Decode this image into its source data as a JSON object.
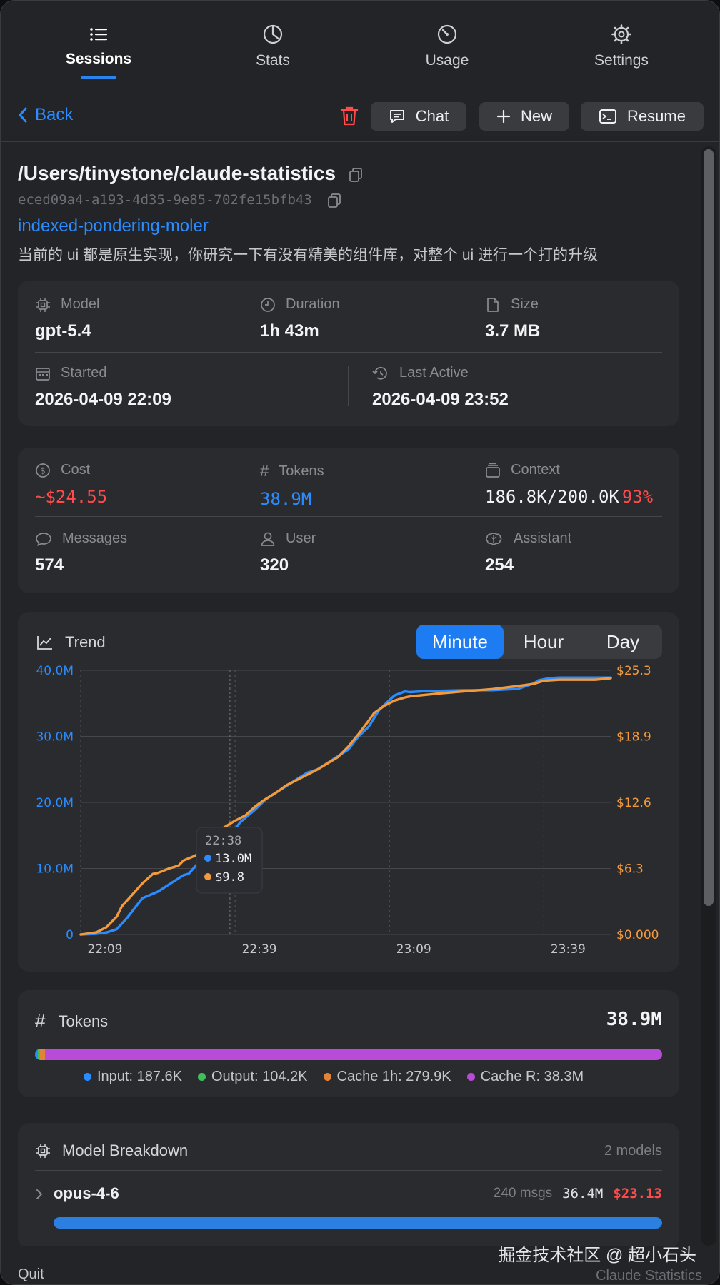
{
  "tabs": [
    {
      "label": "Sessions",
      "icon": "list-icon",
      "active": true
    },
    {
      "label": "Stats",
      "icon": "pie-chart-icon",
      "active": false
    },
    {
      "label": "Usage",
      "icon": "gauge-icon",
      "active": false
    },
    {
      "label": "Settings",
      "icon": "gear-icon",
      "active": false
    }
  ],
  "toolbar": {
    "back_label": "Back",
    "chat_label": "Chat",
    "new_label": "New",
    "resume_label": "Resume"
  },
  "session": {
    "path": "/Users/tinystone/claude-statistics",
    "uuid": "eced09a4-a193-4d35-9e85-702fe15bfb43",
    "slug": "indexed-pondering-moler",
    "description": "当前的 ui 都是原生实现，你研究一下有没有精美的组件库，对整个 ui 进行一个打的升级"
  },
  "info": {
    "model_label": "Model",
    "model_value": "gpt-5.4",
    "duration_label": "Duration",
    "duration_value": "1h 43m",
    "size_label": "Size",
    "size_value": "3.7 MB",
    "started_label": "Started",
    "started_value": "2026-04-09 22:09",
    "last_active_label": "Last Active",
    "last_active_value": "2026-04-09 23:52"
  },
  "metrics": {
    "cost_label": "Cost",
    "cost_value": "~$24.55",
    "tokens_label": "Tokens",
    "tokens_value": "38.9M",
    "context_label": "Context",
    "context_value": "186.8K/200.0K",
    "context_pct": "93%",
    "messages_label": "Messages",
    "messages_value": "574",
    "user_label": "User",
    "user_value": "320",
    "assistant_label": "Assistant",
    "assistant_value": "254"
  },
  "trend": {
    "title": "Trend",
    "segments": [
      "Minute",
      "Hour",
      "Day"
    ],
    "active_segment": "Minute",
    "tooltip": {
      "time": "22:38",
      "tokens": "13.0M",
      "cost": "$9.8"
    }
  },
  "chart_data": {
    "type": "line",
    "title": "Trend",
    "x_ticks": [
      "22:09",
      "22:39",
      "23:09",
      "23:39"
    ],
    "y_left_ticks": [
      "0",
      "10.0M",
      "20.0M",
      "30.0M",
      "40.0M"
    ],
    "y_right_ticks": [
      "$0.000",
      "$6.3",
      "$12.6",
      "$18.9",
      "$25.3"
    ],
    "y_left_range": [
      0,
      40
    ],
    "y_right_range": [
      0,
      25.3
    ],
    "x_range_minutes": [
      0,
      103
    ],
    "series": [
      {
        "axis": "left",
        "color": "#2a8cff",
        "x": [
          0,
          3,
          5,
          7,
          9,
          12,
          15,
          16,
          18,
          20,
          21,
          23,
          24,
          26,
          28,
          30,
          31,
          34,
          36,
          38,
          40,
          42,
          44,
          46,
          48,
          50,
          52,
          54,
          56,
          58,
          60,
          61,
          63,
          64,
          66,
          68,
          70,
          75,
          80,
          85,
          88,
          89,
          91,
          93,
          95,
          100,
          103
        ],
        "values": [
          0,
          0.1,
          0.3,
          0.8,
          2.5,
          5.5,
          6.5,
          7.0,
          8.0,
          9.0,
          9.2,
          11.0,
          12.0,
          13.0,
          14.5,
          16.0,
          17.0,
          19.0,
          20.5,
          21.5,
          22.5,
          23.5,
          24.5,
          25.0,
          26.0,
          27.0,
          28.0,
          30.0,
          31.5,
          34.0,
          35.5,
          36.2,
          36.8,
          36.7,
          36.8,
          36.9,
          36.9,
          37.0,
          37.0,
          37.2,
          38.0,
          38.5,
          38.8,
          38.9,
          38.9,
          38.9,
          38.9
        ]
      },
      {
        "axis": "right",
        "color": "#f39a3c",
        "x": [
          0,
          3,
          5,
          7,
          8,
          10,
          12,
          14,
          15,
          17,
          19,
          20,
          22,
          24,
          25,
          26,
          28,
          30,
          32,
          34,
          36,
          38,
          40,
          42,
          44,
          46,
          48,
          50,
          52,
          54,
          56,
          57,
          59,
          61,
          63,
          64,
          66,
          70,
          75,
          80,
          85,
          88,
          90,
          93,
          96,
          100,
          103
        ],
        "values": [
          0,
          0.2,
          0.7,
          1.7,
          2.7,
          3.8,
          4.9,
          5.8,
          5.9,
          6.3,
          6.6,
          7.1,
          7.5,
          8.0,
          8.7,
          9.6,
          10.3,
          10.9,
          11.4,
          12.3,
          13.0,
          13.6,
          14.3,
          14.8,
          15.3,
          15.8,
          16.4,
          17.0,
          18.0,
          19.2,
          20.5,
          21.2,
          21.9,
          22.4,
          22.7,
          22.8,
          22.9,
          23.1,
          23.3,
          23.5,
          23.8,
          24.0,
          24.3,
          24.4,
          24.4,
          24.4,
          24.55
        ]
      }
    ]
  },
  "token_breakdown": {
    "title": "Tokens",
    "total": "38.9M",
    "legend": [
      {
        "label": "Input: 187.6K",
        "color": "#2a8cff"
      },
      {
        "label": "Output: 104.2K",
        "color": "#3fbf5a"
      },
      {
        "label": "Cache 1h: 279.9K",
        "color": "#e2833a"
      },
      {
        "label": "Cache R: 38.3M",
        "color": "#b84cd8"
      }
    ],
    "fractions": [
      0.0048,
      0.0027,
      0.0072,
      0.9853
    ]
  },
  "model_breakdown": {
    "title": "Model Breakdown",
    "count": "2 models",
    "rows": [
      {
        "name": "opus-4-6",
        "msgs": "240 msgs",
        "tokens": "36.4M",
        "cost": "$23.13",
        "fraction": 1.0
      }
    ]
  },
  "footer": {
    "quit_label": "Quit",
    "app_name": "Claude Statistics",
    "watermark": "掘金技术社区 @ 超小石头"
  },
  "colors": {
    "accent": "#2a8cff",
    "cost": "#ff4b4b",
    "orange": "#f39a3c",
    "purple": "#b84cd8"
  }
}
